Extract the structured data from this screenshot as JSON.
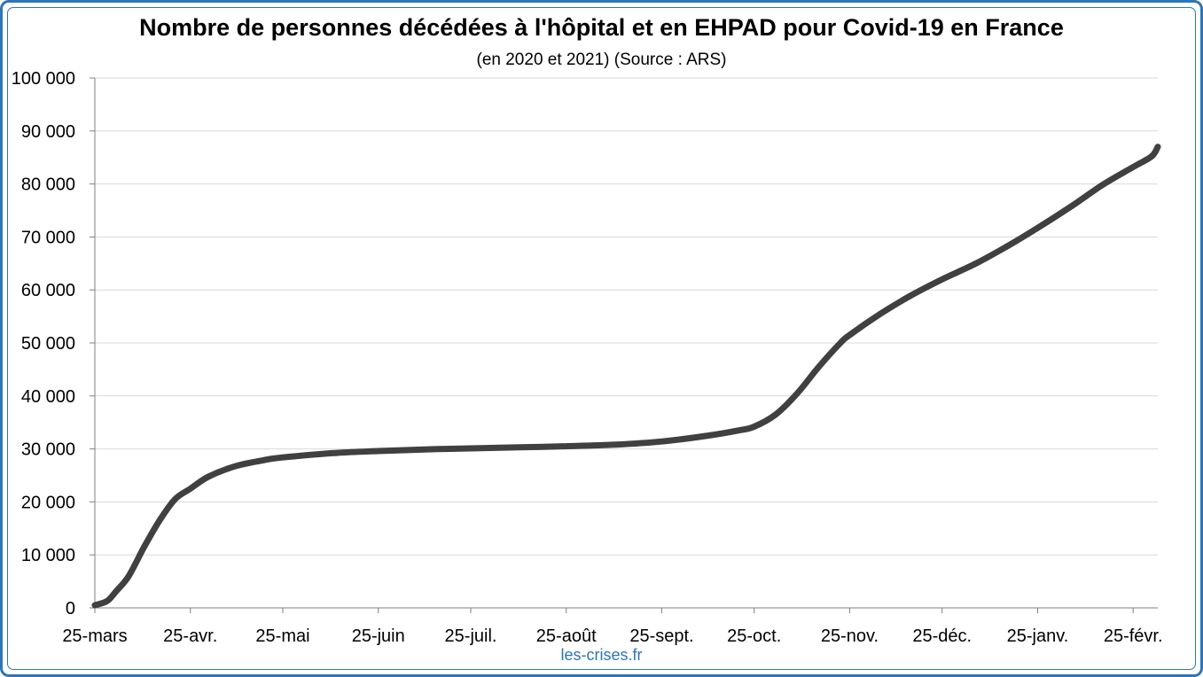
{
  "chart_data": {
    "type": "line",
    "title": "Nombre de personnes décédées à l'hôpital et en EHPAD pour Covid-19 en France",
    "subtitle": "(en 2020 et 2021) (Source : ARS)",
    "xlabel": "",
    "ylabel": "",
    "ylim": [
      0,
      100000
    ],
    "grid": true,
    "legend": "none",
    "y_ticks": [
      {
        "value": 0,
        "label": "0"
      },
      {
        "value": 10000,
        "label": "10 000"
      },
      {
        "value": 20000,
        "label": "20 000"
      },
      {
        "value": 30000,
        "label": "30 000"
      },
      {
        "value": 40000,
        "label": "40 000"
      },
      {
        "value": 50000,
        "label": "50 000"
      },
      {
        "value": 60000,
        "label": "60 000"
      },
      {
        "value": 70000,
        "label": "70 000"
      },
      {
        "value": 80000,
        "label": "80 000"
      },
      {
        "value": 90000,
        "label": "90 000"
      },
      {
        "value": 100000,
        "label": "100 000"
      }
    ],
    "x_ticks": [
      {
        "value": "2020-03-25",
        "label": "25-mars"
      },
      {
        "value": "2020-04-25",
        "label": "25-avr."
      },
      {
        "value": "2020-05-25",
        "label": "25-mai"
      },
      {
        "value": "2020-06-25",
        "label": "25-juin"
      },
      {
        "value": "2020-07-25",
        "label": "25-juil."
      },
      {
        "value": "2020-08-25",
        "label": "25-août"
      },
      {
        "value": "2020-09-25",
        "label": "25-sept."
      },
      {
        "value": "2020-10-25",
        "label": "25-oct."
      },
      {
        "value": "2020-11-25",
        "label": "25-nov."
      },
      {
        "value": "2020-12-25",
        "label": "25-déc."
      },
      {
        "value": "2021-01-25",
        "label": "25-janv."
      },
      {
        "value": "2021-02-25",
        "label": "25-févr."
      }
    ],
    "xlim": [
      "2020-03-25",
      "2021-03-05"
    ],
    "series": [
      {
        "color": "#404040",
        "points": [
          {
            "x": "2020-03-25",
            "y": 500
          },
          {
            "x": "2020-03-29",
            "y": 1300
          },
          {
            "x": "2020-04-01",
            "y": 3200
          },
          {
            "x": "2020-04-05",
            "y": 6000
          },
          {
            "x": "2020-04-10",
            "y": 11500
          },
          {
            "x": "2020-04-15",
            "y": 16500
          },
          {
            "x": "2020-04-20",
            "y": 20500
          },
          {
            "x": "2020-04-25",
            "y": 22500
          },
          {
            "x": "2020-05-01",
            "y": 24800
          },
          {
            "x": "2020-05-10",
            "y": 26800
          },
          {
            "x": "2020-05-20",
            "y": 28000
          },
          {
            "x": "2020-05-25",
            "y": 28400
          },
          {
            "x": "2020-06-10",
            "y": 29200
          },
          {
            "x": "2020-06-25",
            "y": 29600
          },
          {
            "x": "2020-07-10",
            "y": 29900
          },
          {
            "x": "2020-07-25",
            "y": 30100
          },
          {
            "x": "2020-08-10",
            "y": 30300
          },
          {
            "x": "2020-08-25",
            "y": 30500
          },
          {
            "x": "2020-09-10",
            "y": 30800
          },
          {
            "x": "2020-09-25",
            "y": 31400
          },
          {
            "x": "2020-10-10",
            "y": 32500
          },
          {
            "x": "2020-10-20",
            "y": 33500
          },
          {
            "x": "2020-10-25",
            "y": 34200
          },
          {
            "x": "2020-11-01",
            "y": 36500
          },
          {
            "x": "2020-11-08",
            "y": 40500
          },
          {
            "x": "2020-11-15",
            "y": 45500
          },
          {
            "x": "2020-11-22",
            "y": 50000
          },
          {
            "x": "2020-11-25",
            "y": 51500
          },
          {
            "x": "2020-12-05",
            "y": 55500
          },
          {
            "x": "2020-12-15",
            "y": 59000
          },
          {
            "x": "2020-12-25",
            "y": 62000
          },
          {
            "x": "2021-01-05",
            "y": 65000
          },
          {
            "x": "2021-01-15",
            "y": 68200
          },
          {
            "x": "2021-01-25",
            "y": 71700
          },
          {
            "x": "2021-02-05",
            "y": 75800
          },
          {
            "x": "2021-02-15",
            "y": 79800
          },
          {
            "x": "2021-02-25",
            "y": 83200
          },
          {
            "x": "2021-03-03",
            "y": 85200
          },
          {
            "x": "2021-03-05",
            "y": 87000
          }
        ]
      }
    ]
  },
  "source": "les-crises.fr"
}
